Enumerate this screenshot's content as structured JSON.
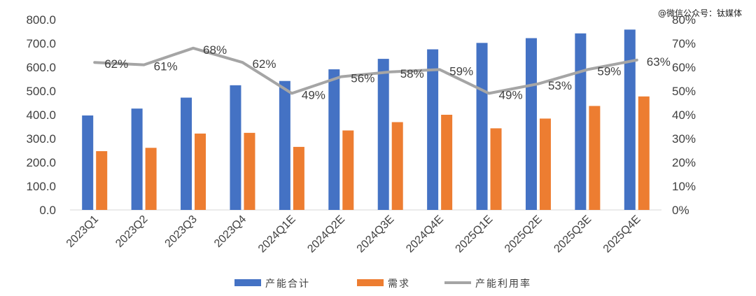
{
  "chart_data": {
    "type": "bar",
    "categories": [
      "2023Q1",
      "2023Q2",
      "2023Q3",
      "2023Q4",
      "2024Q1E",
      "2024Q2E",
      "2024Q3E",
      "2024Q4E",
      "2025Q1E",
      "2025Q2E",
      "2025Q3E",
      "2025Q4E"
    ],
    "series": [
      {
        "name": "产能合计",
        "type": "bar",
        "axis": "left",
        "color": "#4472C4",
        "values": [
          397,
          426,
          472,
          524,
          542,
          591,
          635,
          675,
          702,
          722,
          742,
          758
        ]
      },
      {
        "name": "需求",
        "type": "bar",
        "axis": "left",
        "color": "#ED7D31",
        "values": [
          247,
          261,
          321,
          324,
          265,
          334,
          369,
          400,
          343,
          384,
          437,
          477
        ]
      },
      {
        "name": "产能利用率",
        "type": "line",
        "axis": "right",
        "color": "#A5A5A5",
        "values": [
          62,
          61,
          68,
          62,
          49,
          56,
          58,
          59,
          49,
          53,
          59,
          63
        ],
        "labels": [
          "62%",
          "61%",
          "68%",
          "62%",
          "49%",
          "56%",
          "58%",
          "59%",
          "49%",
          "53%",
          "59%",
          "63%"
        ]
      }
    ],
    "left_axis": {
      "min": 0,
      "max": 800,
      "ticks": [
        "0.0",
        "100.0",
        "200.0",
        "300.0",
        "400.0",
        "500.0",
        "600.0",
        "700.0",
        "800.0"
      ]
    },
    "right_axis": {
      "min": 0,
      "max": 80,
      "ticks": [
        "0%",
        "10%",
        "20%",
        "30%",
        "40%",
        "50%",
        "60%",
        "70%",
        "80%"
      ]
    },
    "legend_position": "bottom",
    "grid": false
  },
  "watermark": "@微信公众号：钛媒体"
}
